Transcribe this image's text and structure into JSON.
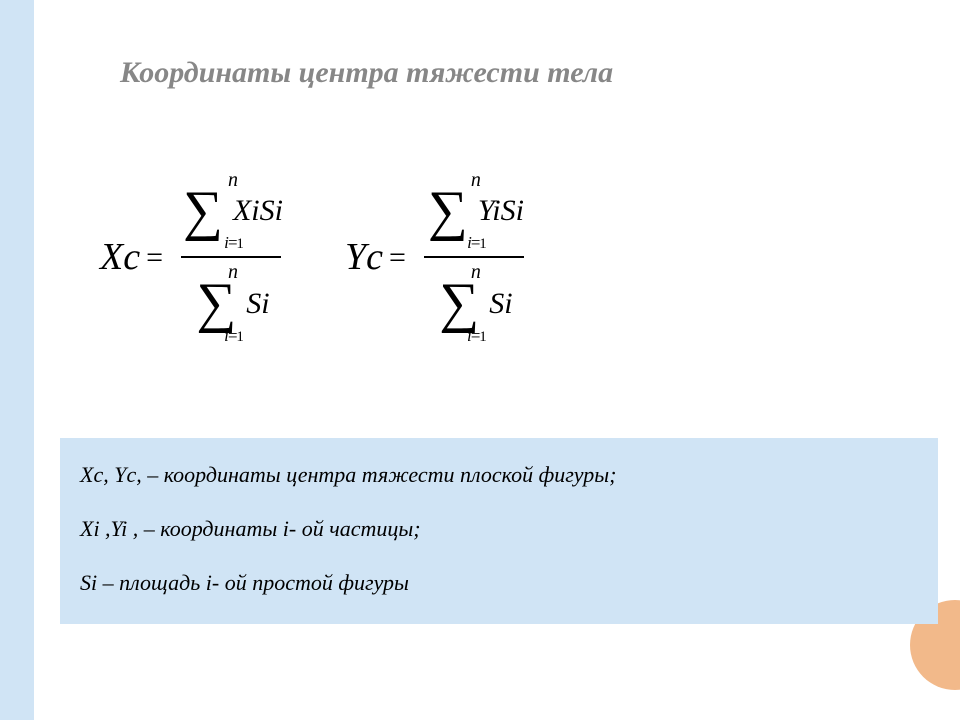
{
  "title": "Координаты центра тяжести тела",
  "formulas": {
    "x": {
      "lhs": "Xc",
      "upper": "n",
      "lower_var": "i",
      "lower_eq": "=",
      "lower_val": "1",
      "numerator_summand": "XiSi",
      "denominator_summand": "Si"
    },
    "y": {
      "lhs": "Yc",
      "upper": "n",
      "lower_var": "i",
      "lower_eq": "=",
      "lower_val": "1",
      "numerator_summand": "YiSi",
      "denominator_summand": "Si"
    },
    "eq_sign": "=",
    "line_width_num": 100,
    "line_width_den": 52
  },
  "defs": {
    "line1": "Xc, Yc, – координаты центра тяжести  плоской фигуры;",
    "line2": "Xi ,Yi , – координаты i- ой  частицы;",
    "line3": "Si – площадь i- ой  простой фигуры"
  },
  "colors": {
    "accent_light_blue": "#d0e4f5",
    "title_gray": "#878787",
    "corner_orange": "#f2b98a",
    "text_black": "#000000",
    "background": "#ffffff"
  },
  "typography": {
    "title_fontsize": 30,
    "formula_lhs_fontsize": 38,
    "sigma_fontsize": 56,
    "summand_fontsize": 30,
    "defs_fontsize": 22
  }
}
